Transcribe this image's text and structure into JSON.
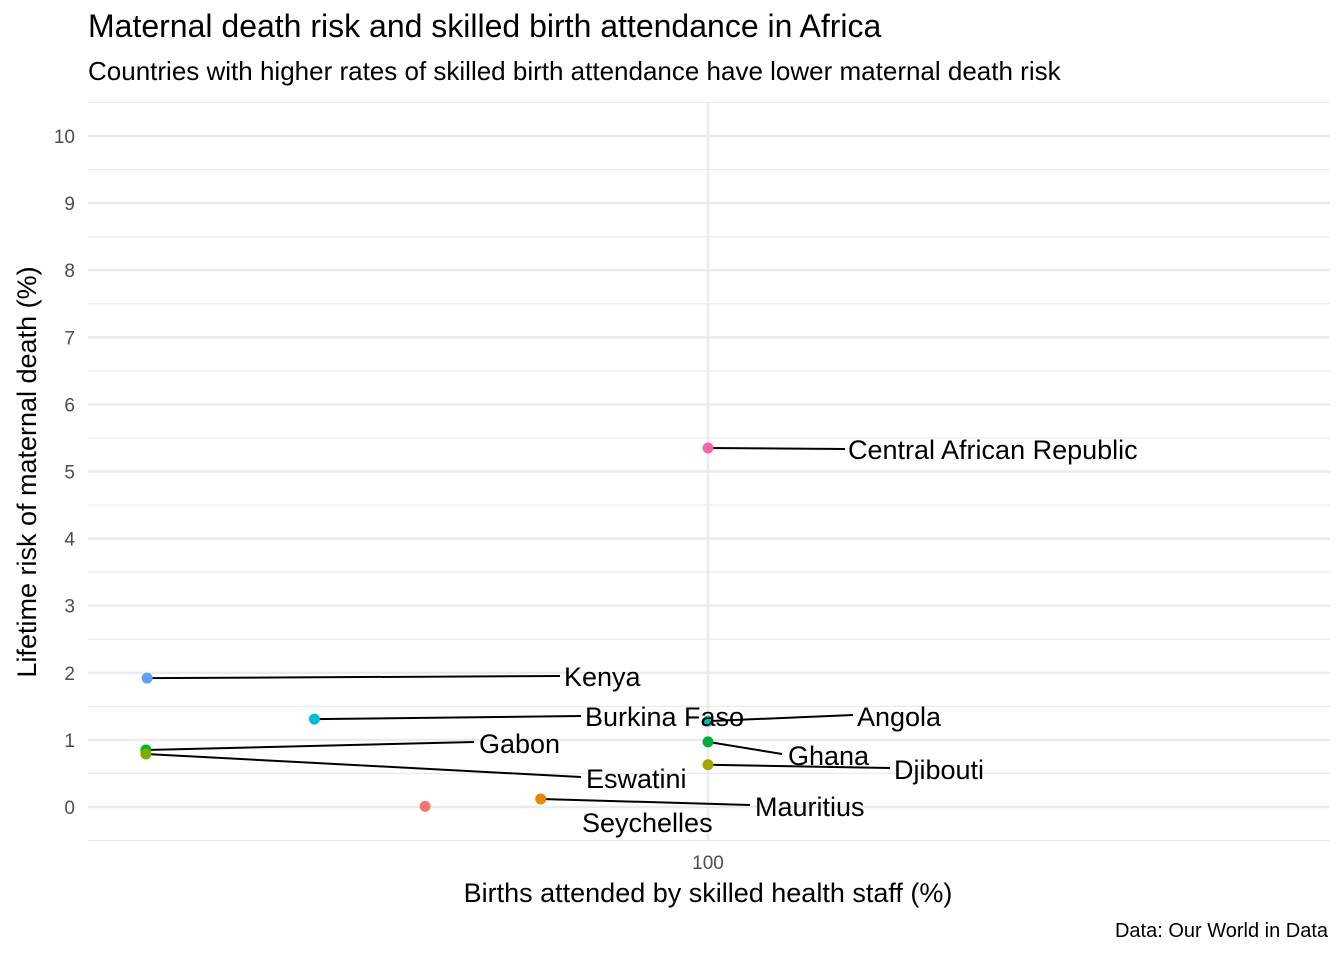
{
  "title": "Maternal death risk and skilled birth attendance in Africa",
  "subtitle": "Countries with higher rates of skilled birth attendance have lower maternal death risk",
  "caption": "Data: Our World in Data",
  "chart_data": {
    "type": "scatter",
    "title": "Maternal death risk and skilled birth attendance in Africa",
    "subtitle": "Countries with higher rates of skilled birth attendance have lower maternal death risk",
    "xlabel": "Births attended by skilled health staff (%)",
    "ylabel": "Lifetime risk of maternal death (%)",
    "x_ticks": [
      100
    ],
    "y_ticks": [
      0,
      1,
      2,
      3,
      4,
      5,
      6,
      7,
      8,
      9,
      10
    ],
    "ylim": [
      -0.5,
      10.5
    ],
    "xlim": [
      48.5,
      151.5
    ],
    "grid": true,
    "legend": "none",
    "points": [
      {
        "label": "Central African Republic",
        "x": 100,
        "y": 5.35,
        "color": "#f564a3"
      },
      {
        "label": "Kenya",
        "x": 54.4,
        "y": 1.92,
        "color": "#619cff"
      },
      {
        "label": "Burkina Faso",
        "x": 68,
        "y": 1.31,
        "color": "#00bcd8"
      },
      {
        "label": "Angola",
        "x": 100,
        "y": 1.28,
        "color": "#00bfaa"
      },
      {
        "label": "Gabon",
        "x": 54.3,
        "y": 0.85,
        "color": "#00b81f"
      },
      {
        "label": "Eswatini",
        "x": 54.3,
        "y": 0.79,
        "color": "#7cae00"
      },
      {
        "label": "Ghana",
        "x": 100,
        "y": 0.97,
        "color": "#00ac3c"
      },
      {
        "label": "Djibouti",
        "x": 100,
        "y": 0.63,
        "color": "#a3a500"
      },
      {
        "label": "Mauritius",
        "x": 86.4,
        "y": 0.12,
        "color": "#e58700"
      },
      {
        "label": "Seychelles",
        "x": 77,
        "y": 0.01,
        "color": "#f8766d"
      }
    ]
  }
}
